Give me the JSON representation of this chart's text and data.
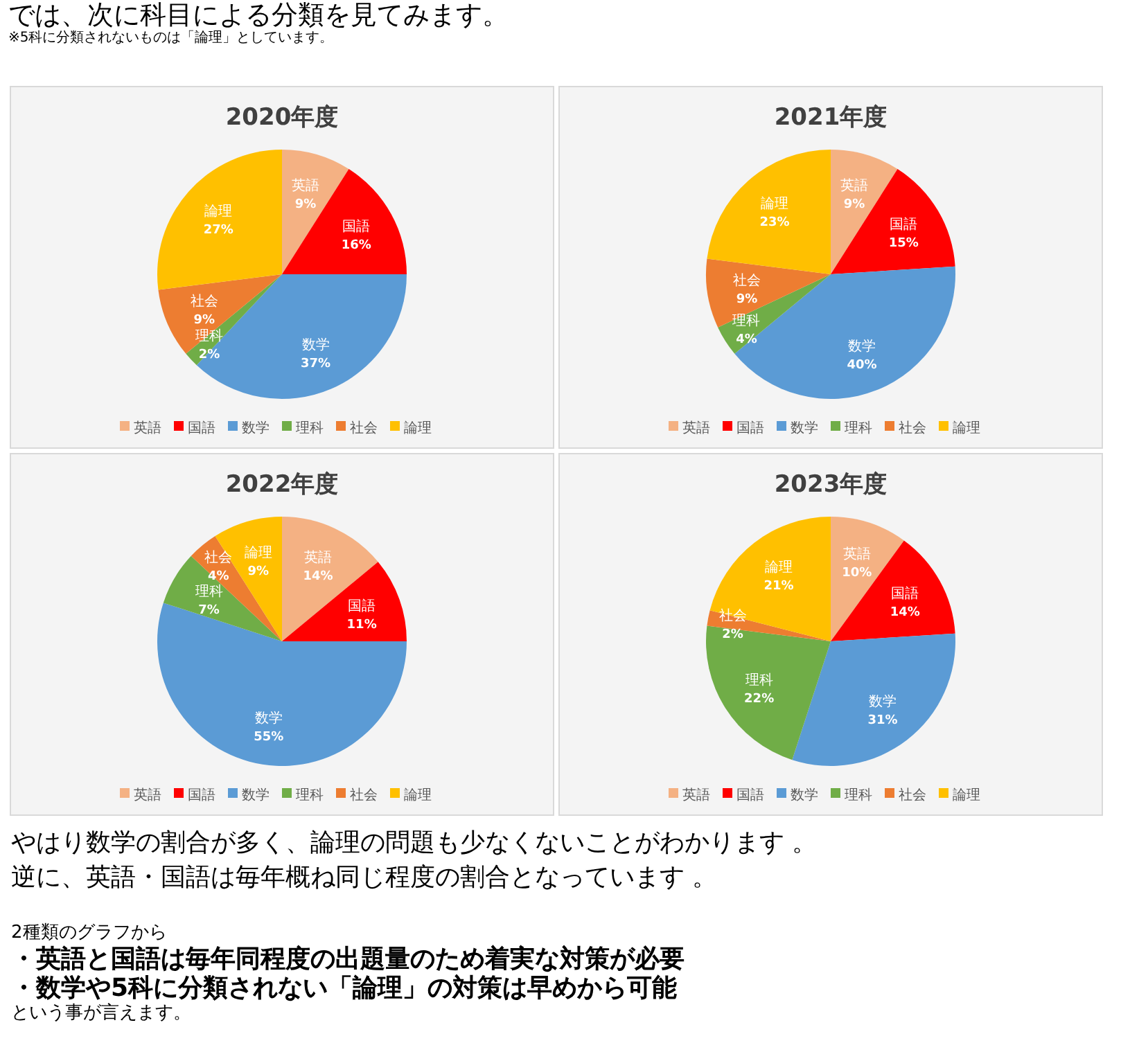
{
  "chart_data": [
    {
      "type": "other",
      "title": "では、次に科目による分類を見てみます。",
      "subtitle": "※5科に分類されないものは「論理」としています。"
    },
    {
      "type": "pie",
      "title": "2020年度",
      "categories": [
        "英語",
        "国語",
        "数学",
        "理科",
        "社会",
        "論理"
      ],
      "values": [
        9,
        16,
        37,
        2,
        9,
        27
      ],
      "value_labels": [
        "9%",
        "16%",
        "37%",
        "2%",
        "9%",
        "27%"
      ],
      "colors": [
        "#f4b183",
        "#ff0000",
        "#5b9bd5",
        "#70ad47",
        "#ed7d31",
        "#ffc000"
      ],
      "legend": "bottom"
    },
    {
      "type": "pie",
      "title": "2021年度",
      "categories": [
        "英語",
        "国語",
        "数学",
        "理科",
        "社会",
        "論理"
      ],
      "values": [
        9,
        15,
        40,
        4,
        9,
        23
      ],
      "value_labels": [
        "9%",
        "15%",
        "40%",
        "4%",
        "9%",
        "23%"
      ],
      "colors": [
        "#f4b183",
        "#ff0000",
        "#5b9bd5",
        "#70ad47",
        "#ed7d31",
        "#ffc000"
      ],
      "legend": "bottom"
    },
    {
      "type": "pie",
      "title": "2022年度",
      "categories": [
        "英語",
        "国語",
        "数学",
        "理科",
        "社会",
        "論理"
      ],
      "values": [
        14,
        11,
        55,
        7,
        4,
        9
      ],
      "value_labels": [
        "14%",
        "11%",
        "55%",
        "7%",
        "4%",
        "9%"
      ],
      "colors": [
        "#f4b183",
        "#ff0000",
        "#5b9bd5",
        "#70ad47",
        "#ed7d31",
        "#ffc000"
      ],
      "legend": "bottom"
    },
    {
      "type": "pie",
      "title": "2023年度",
      "categories": [
        "英語",
        "国語",
        "数学",
        "理科",
        "社会",
        "論理"
      ],
      "values": [
        10,
        14,
        31,
        22,
        2,
        21
      ],
      "value_labels": [
        "10%",
        "14%",
        "31%",
        "22%",
        "2%",
        "21%"
      ],
      "colors": [
        "#f4b183",
        "#ff0000",
        "#5b9bd5",
        "#70ad47",
        "#ed7d31",
        "#ffc000"
      ],
      "legend": "bottom"
    },
    {
      "type": "other",
      "annotations": [
        "やはり数学の割合が多く、論理の問題も少なくないことがわかります 。",
        "逆に、英語・国語は毎年概ね同じ程度の割合となっています 。",
        "2種類のグラフから",
        "・英語と国語は毎年同程度の出題量のため着実な対策が必要",
        "・数学や5科に分類されない「論理」の対策は早めから可能",
        "という事が言えます。"
      ]
    }
  ]
}
